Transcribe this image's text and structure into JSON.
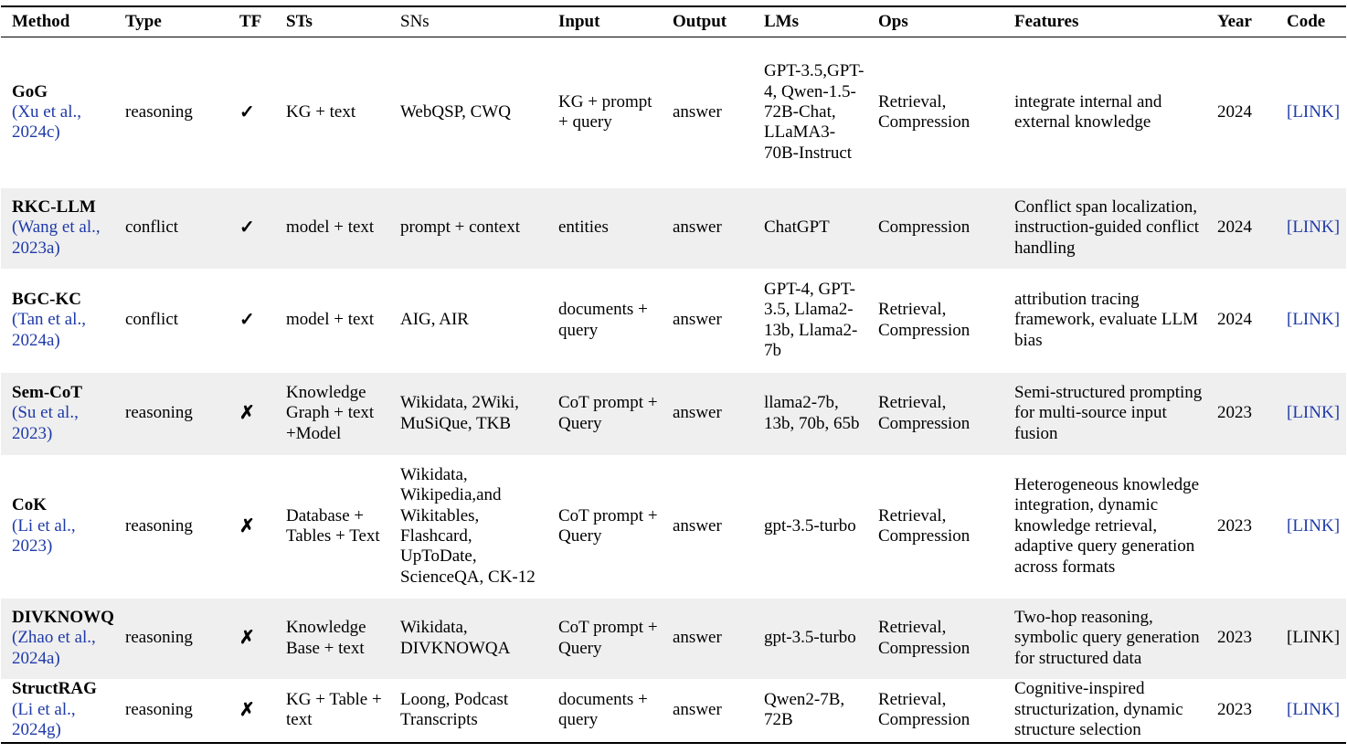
{
  "columns": [
    "Method",
    "Type",
    "TF",
    "STs",
    "SNs",
    "Input",
    "Output",
    "LMs",
    "Ops",
    "Features",
    "Year",
    "Code"
  ],
  "rows": [
    {
      "method": "GoG",
      "cite": "(Xu et al., 2024c)",
      "type": "reasoning",
      "tf": "✓",
      "sts": "KG + text",
      "sns": "WebQSP, CWQ",
      "input": "KG + prompt + query",
      "output": "answer",
      "lms": "GPT-3.5,GPT-4, Qwen-1.5-72B-Chat, LLaMA3-70B-Instruct",
      "ops": "Retrieval, Compression",
      "features": "integrate internal and external knowledge",
      "year": "2024",
      "code": "[LINK]"
    },
    {
      "method": "RKC-LLM",
      "cite": "(Wang et al., 2023a)",
      "type": "conflict",
      "tf": "✓",
      "sts": "model + text",
      "sns": "prompt + context",
      "input": "entities",
      "output": "answer",
      "lms": "ChatGPT",
      "ops": "Compression",
      "features": "Conflict span localization, instruction-guided conflict handling",
      "year": "2024",
      "code": "[LINK]"
    },
    {
      "method": "BGC-KC",
      "cite": "(Tan et al., 2024a)",
      "type": "conflict",
      "tf": "✓",
      "sts": "model + text",
      "sns": "AIG, AIR",
      "input": "documents + query",
      "output": "answer",
      "lms": "GPT-4, GPT-3.5, Llama2-13b, Llama2-7b",
      "ops": "Retrieval, Compression",
      "features": "attribution tracing framework, evaluate LLM bias",
      "year": "2024",
      "code": "[LINK]"
    },
    {
      "method": "Sem-CoT",
      "cite": "(Su et al., 2023)",
      "type": "reasoning",
      "tf": "✗",
      "sts": "Knowledge Graph + text +Model",
      "sns": "Wikidata, 2Wiki, MuSiQue, TKB",
      "input": "CoT prompt + Query",
      "output": "answer",
      "lms": "llama2-7b, 13b, 70b, 65b",
      "ops": "Retrieval, Compression",
      "features": "Semi-structured prompting for multi-source input fusion",
      "year": "2023",
      "code": "[LINK]"
    },
    {
      "method": "CoK",
      "cite": "(Li et al., 2023)",
      "type": "reasoning",
      "tf": "✗",
      "sts": "Database + Tables + Text",
      "sns": "Wikidata, Wikipedia,and Wikitables, Flashcard, UpToDate, ScienceQA, CK-12",
      "input": "CoT prompt + Query",
      "output": "answer",
      "lms": "gpt-3.5-turbo",
      "ops": "Retrieval, Compression",
      "features": "Heterogeneous knowledge integration, dynamic knowledge retrieval, adaptive query generation across formats",
      "year": "2023",
      "code": "[LINK]"
    },
    {
      "method": "DIVKNOWQA",
      "cite": "(Zhao et al., 2024a)",
      "type": "reasoning",
      "tf": "✗",
      "sts": "Knowledge Base + text",
      "sns": "Wikidata, DIVKNOWQA",
      "input": "CoT prompt + Query",
      "output": "answer",
      "lms": "gpt-3.5-turbo",
      "ops": "Retrieval, Compression",
      "features": "Two-hop reasoning, symbolic query generation for structured data",
      "year": "2023",
      "code": "[LINK]"
    },
    {
      "method": "StructRAG",
      "cite": "(Li et al., 2024g)",
      "type": "reasoning",
      "tf": "✗",
      "sts": "KG + Table + text",
      "sns": "Loong, Podcast Transcripts",
      "input": "documents + query",
      "output": "answer",
      "lms": "Qwen2-7B, 72B",
      "ops": "Retrieval, Compression",
      "features": "Cognitive-inspired structurization, dynamic structure selection",
      "year": "2023",
      "code": "[LINK]"
    }
  ]
}
